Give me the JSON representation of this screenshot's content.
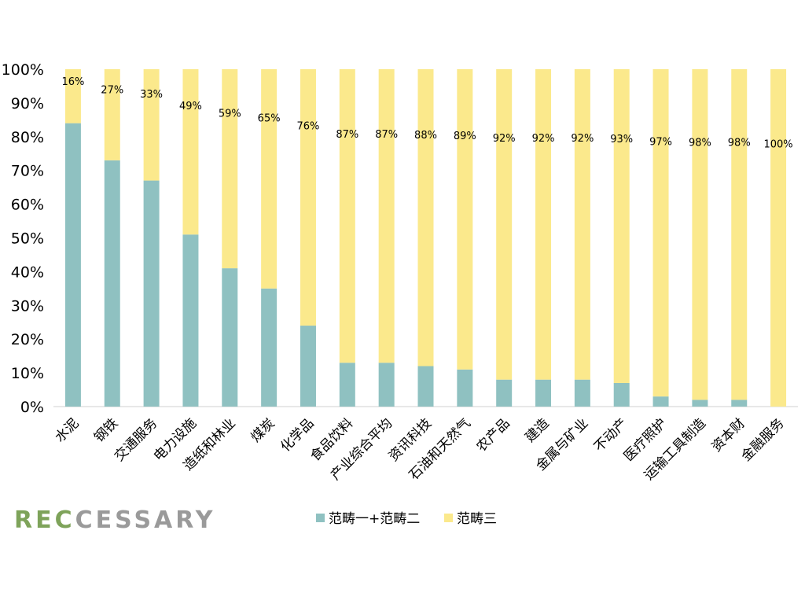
{
  "chart_data": {
    "type": "bar",
    "stacked": true,
    "categories": [
      "水泥",
      "钢铁",
      "交通服务",
      "电力设施",
      "造纸和林业",
      "煤炭",
      "化学品",
      "食品饮料",
      "产业综合平均",
      "资讯科技",
      "石油和天然气",
      "农产品",
      "建造",
      "金属与矿业",
      "不动产",
      "医疗照护",
      "运输工具制造",
      "资本财",
      "金融服务"
    ],
    "series": [
      {
        "name": "范畴一+范畴二",
        "color": "#8fc1c1",
        "values": [
          84,
          73,
          67,
          51,
          41,
          35,
          24,
          13,
          13,
          12,
          11,
          8,
          8,
          8,
          7,
          3,
          2,
          2,
          0
        ]
      },
      {
        "name": "范畴三",
        "color": "#fbe98c",
        "values": [
          16,
          27,
          33,
          49,
          59,
          65,
          76,
          87,
          87,
          88,
          89,
          92,
          92,
          92,
          93,
          97,
          98,
          98,
          100
        ]
      }
    ],
    "data_labels": [
      "16%",
      "27%",
      "33%",
      "49%",
      "59%",
      "65%",
      "76%",
      "87%",
      "87%",
      "88%",
      "89%",
      "92%",
      "92%",
      "92%",
      "93%",
      "97%",
      "98%",
      "98%",
      "100%"
    ],
    "highlight_category": "产业综合平均",
    "highlight_color": "#ff0000",
    "ylim": [
      0,
      100
    ],
    "yticks": [
      "0%",
      "10%",
      "20%",
      "30%",
      "40%",
      "50%",
      "60%",
      "70%",
      "80%",
      "90%",
      "100%"
    ],
    "grid": false,
    "legend_position": "bottom"
  },
  "branding": {
    "logo_text": "RECCESSARY",
    "logo_colors": [
      "#7ea35a",
      "#7ea35a",
      "#7ea35a",
      "#9a9a9a",
      "#9a9a9a",
      "#9a9a9a",
      "#9a9a9a",
      "#9a9a9a",
      "#9a9a9a",
      "#9a9a9a"
    ]
  }
}
